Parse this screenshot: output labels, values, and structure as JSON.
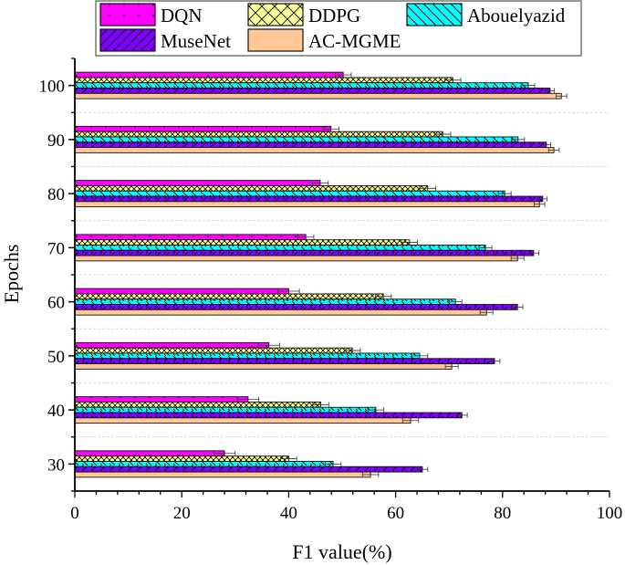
{
  "chart_data": {
    "type": "bar",
    "orientation": "horizontal",
    "title": "",
    "xlabel": "F1 value(%)",
    "ylabel": "Epochs",
    "xlim": [
      0,
      100
    ],
    "xticks": [
      0,
      20,
      40,
      60,
      80,
      100
    ],
    "categories": [
      "30",
      "40",
      "50",
      "60",
      "70",
      "80",
      "90",
      "100"
    ],
    "grid": "dashed separators between epoch groups",
    "legend_position": "top",
    "series": [
      {
        "name": "DQN",
        "color": "#ff00ff",
        "pattern": "dots",
        "values": [
          28.0,
          32.4,
          36.3,
          40.0,
          43.2,
          45.9,
          47.9,
          50.2
        ],
        "errors": [
          2,
          2,
          2,
          2,
          1.5,
          1.5,
          1.5,
          1.5
        ]
      },
      {
        "name": "DDPG",
        "color": "#ffff99",
        "pattern": "crosshatch",
        "values": [
          40.0,
          46.0,
          51.9,
          57.7,
          62.6,
          66.0,
          68.8,
          70.7
        ],
        "errors": [
          1.5,
          1.5,
          1.5,
          1.5,
          1.5,
          1.5,
          1.5,
          1.5
        ]
      },
      {
        "name": "Abouelyazid",
        "color": "#00ffff",
        "pattern": "backslash",
        "values": [
          48.3,
          56.3,
          64.5,
          71.2,
          76.8,
          80.4,
          82.9,
          84.8
        ],
        "errors": [
          1.5,
          1.5,
          1.5,
          1.2,
          1.2,
          1.2,
          1.2,
          1.2
        ]
      },
      {
        "name": "MuseNet",
        "color": "#8000ff",
        "pattern": "slash",
        "values": [
          65.0,
          72.4,
          78.5,
          82.8,
          85.8,
          87.5,
          88.2,
          88.9
        ],
        "errors": [
          1,
          1,
          1,
          1,
          1,
          0.8,
          0.8,
          0.8
        ]
      },
      {
        "name": "AC-MGME",
        "color": "#ffc896",
        "pattern": "solid",
        "values": [
          55.3,
          62.8,
          70.5,
          77.0,
          82.8,
          86.9,
          89.6,
          91.0
        ],
        "errors": [
          1.5,
          1.5,
          1.2,
          1.2,
          1.2,
          1,
          1,
          1
        ]
      }
    ]
  }
}
